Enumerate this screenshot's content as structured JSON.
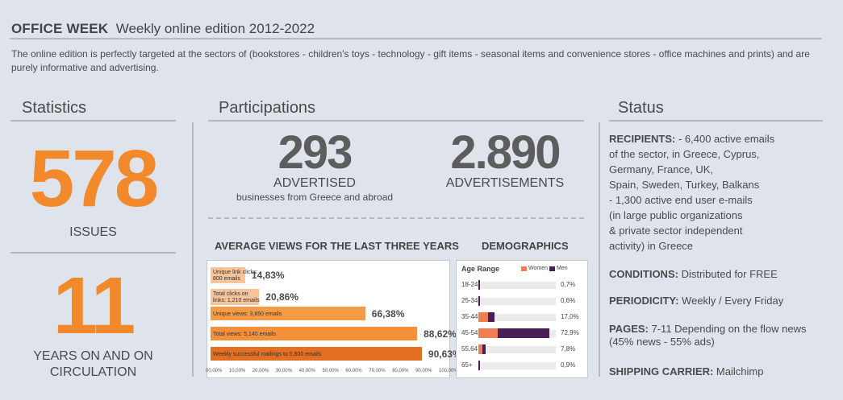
{
  "header": {
    "title": "OFFICE WEEK",
    "subtitle": "Weekly online edition 2012-2022",
    "intro": "The online edition is perfectly targeted at the sectors of (bookstores - children's toys - technology - gift items - seasonal items and convenience stores - office machines and prints) and are purely informative and advertising."
  },
  "statistics": {
    "title": "Statistics",
    "issues_value": "578",
    "issues_label": "ISSUES",
    "years_value": "11",
    "years_label_1": "YEARS ON AND ON",
    "years_label_2": "CIRCULATION"
  },
  "participations": {
    "title": "Participations",
    "advertised_value": "293",
    "advertised_label": "ADVERTISED",
    "advertised_sub": "businesses from Greece and abroad",
    "ads_value": "2.890",
    "ads_label": "ADVERTISEMENTS"
  },
  "views_chart": {
    "title": "AVERAGE VIEWS FOR THE LAST THREE YEARS",
    "bars": [
      {
        "label": "Unique link clicks: 800 emails",
        "pct_text": "14,83%",
        "value": 14.83,
        "color": "#f7c49c"
      },
      {
        "label": "Total clicks on links: 1,210 emails",
        "pct_text": "20,86%",
        "value": 20.86,
        "color": "#f7c49c"
      },
      {
        "label": "Unique views: 3,850 emails",
        "pct_text": "66,38%",
        "value": 66.38,
        "color": "#f59a45"
      },
      {
        "label": "Total views: 5,140 emails",
        "pct_text": "88,62%",
        "value": 88.62,
        "color": "#f48f3a"
      },
      {
        "label": "Weekly successful mailings to 5,800 emails",
        "pct_text": "90,63%",
        "value": 90.63,
        "color": "#e36f22"
      }
    ],
    "ticks": [
      "00,00%",
      "10,00%",
      "20,00%",
      "30,00%",
      "40,00%",
      "50,00%",
      "60,00%",
      "70,00%",
      "80,00%",
      "90,00%",
      "100,00%"
    ]
  },
  "demographics": {
    "title": "DEMOGRAPHICS",
    "header": "Age Range",
    "legend_women": "Women",
    "legend_men": "Men",
    "women_color": "#ee7f55",
    "men_color": "#4b1f55",
    "rows": [
      {
        "range": "18-24",
        "women": 0.0,
        "men": 0.7,
        "pct_text": "0,7%"
      },
      {
        "range": "25-34",
        "women": 0.0,
        "men": 0.6,
        "pct_text": "0,6%"
      },
      {
        "range": "35-44",
        "women": 10.0,
        "men": 7.0,
        "pct_text": "17,0%"
      },
      {
        "range": "45-54",
        "women": 20.0,
        "men": 52.9,
        "pct_text": "72,9%"
      },
      {
        "range": "55,64",
        "women": 4.0,
        "men": 3.8,
        "pct_text": "7,8%"
      },
      {
        "range": "65+",
        "women": 0.0,
        "men": 0.9,
        "pct_text": "0,9%"
      }
    ]
  },
  "status": {
    "title": "Status",
    "recipients_label": "RECIPIENTS:",
    "recipients_lines": [
      " - 6,400 active emails",
      "of the sector, in Greece, Cyprus,",
      "Germany, France, UK,",
      "Spain, Sweden, Turkey, Balkans",
      "- 1,300 active end user e-mails",
      "(in large public organizations",
      "& private sector independent",
      "activity) in Greece"
    ],
    "conditions_label": "CONDITIONS:",
    "conditions_value": " Distributed for FREE",
    "periodicity_label": "PERIODICITY:",
    "periodicity_value": " Weekly / Every Friday",
    "pages_label": "PAGES:",
    "pages_value": " 7-11 Depending on the flow news",
    "pages_value_2": "(45% news - 55% ads)",
    "shipping_label": "SHIPPING CARRIER:",
    "shipping_value": " Mailchimp"
  }
}
